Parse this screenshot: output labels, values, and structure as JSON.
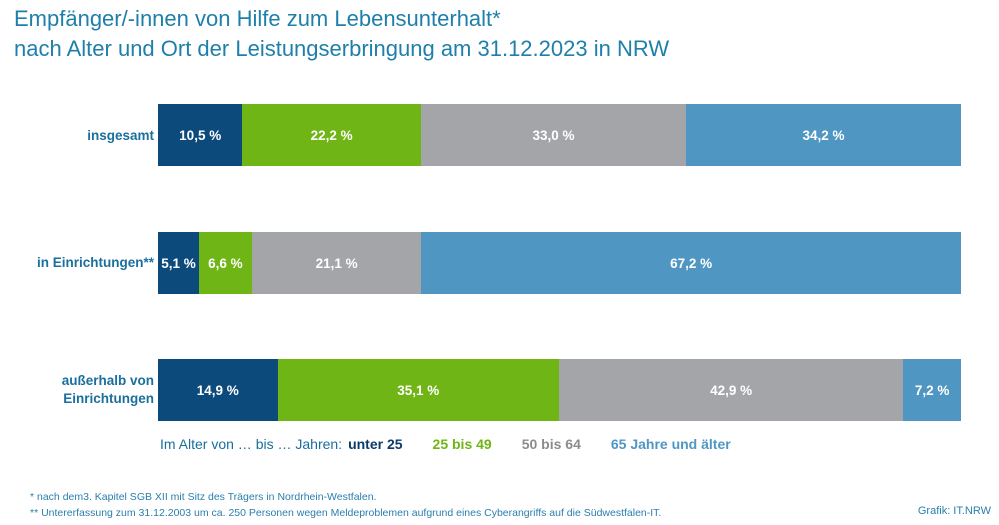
{
  "title_line1": "Empfänger/-innen von Hilfe zum Lebensunterhalt*",
  "title_line2": "nach Alter und Ort der Leistungserbringung am 31.12.2023 in NRW",
  "colors": {
    "unter_25": "#0d4a7c",
    "25_bis_49": "#6fb515",
    "50_bis_64": "#a3a5a8",
    "65_plus": "#4f97c2",
    "title": "#1f7fab"
  },
  "chart_data": {
    "type": "bar",
    "orientation": "horizontal",
    "stacked": true,
    "percent": true,
    "title": "Empfänger/-innen von Hilfe zum Lebensunterhalt* nach Alter und Ort der Leistungserbringung am 31.12.2023 in NRW",
    "categories": [
      "insgesamt",
      "in Einrichtungen**",
      "außerhalb von Einrichtungen"
    ],
    "series": [
      {
        "name": "unter 25",
        "values": [
          10.5,
          5.1,
          14.9
        ],
        "labels": [
          "10,5 %",
          "5,1 %",
          "14,9 %"
        ]
      },
      {
        "name": "25 bis 49",
        "values": [
          22.2,
          6.6,
          35.1
        ],
        "labels": [
          "22,2 %",
          "6,6 %",
          "35,1 %"
        ]
      },
      {
        "name": "50 bis 64",
        "values": [
          33.0,
          21.1,
          42.9
        ],
        "labels": [
          "33,0 %",
          "21,1 %",
          "42,9 %"
        ]
      },
      {
        "name": "65 Jahre und älter",
        "values": [
          34.2,
          67.2,
          7.2
        ],
        "labels": [
          "34,2 %",
          "67,2 %",
          "7,2 %"
        ]
      }
    ],
    "legend_prefix": "Im Alter von … bis … Jahren:",
    "legend_position": "bottom"
  },
  "footnotes": [
    "*  nach dem3. Kapitel SGB XII mit Sitz des Trägers in Nordrhein-Westfalen.",
    "**  Untererfassung zum 31.12.2003 um ca. 250 Personen wegen Meldeproblemen aufgrund eines Cyberangriffs auf die Südwestfalen-IT."
  ],
  "source": "Grafik: IT.NRW"
}
